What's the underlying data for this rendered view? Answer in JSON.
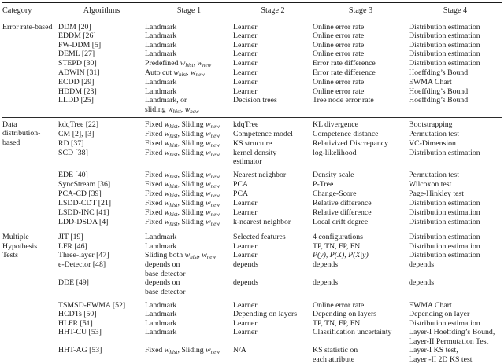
{
  "page": {
    "background": "#ffffff",
    "text_color": "#1d1d1d",
    "rule_color": "#2b2b2b"
  },
  "table": {
    "columns": [
      {
        "label": "Category",
        "align": "left"
      },
      {
        "label": "Algorithms",
        "align": "center"
      },
      {
        "label": "Stage 1",
        "align": "center"
      },
      {
        "label": "Stage 2",
        "align": "center"
      },
      {
        "label": "Stage 3",
        "align": "center"
      },
      {
        "label": "Stage 4",
        "align": "center"
      }
    ],
    "sections": [
      {
        "category": "Error rate-based",
        "rows": [
          {
            "algorithm": "DDM [20]",
            "stage1": "Landmark",
            "stage2": "Learner",
            "stage3": "Online error rate",
            "stage4": "Distribution estimation"
          },
          {
            "algorithm": "EDDM [26]",
            "stage1": "Landmark",
            "stage2": "Learner",
            "stage3": "Online error rate",
            "stage4": "Distribution estimation"
          },
          {
            "algorithm": "FW-DDM [5]",
            "stage1": "Landmark",
            "stage2": "Learner",
            "stage3": "Online error rate",
            "stage4": "Distribution estimation"
          },
          {
            "algorithm": "DEML [27]",
            "stage1": "Landmark",
            "stage2": "Learner",
            "stage3": "Online error rate",
            "stage4": "Distribution estimation"
          },
          {
            "algorithm": "STEPD [30]",
            "stage1": "Predefined $w_hist$, $w_new$",
            "stage2": "Learner",
            "stage3": "Error rate difference",
            "stage4": "Distribution estimation"
          },
          {
            "algorithm": "ADWIN [31]",
            "stage1": "Auto cut $w_hist$, $w_new$",
            "stage2": "Learner",
            "stage3": "Error rate difference",
            "stage4": "Hoeffding’s Bound"
          },
          {
            "algorithm": "ECDD [29]",
            "stage1": "Landmark",
            "stage2": "Learner",
            "stage3": "Online error rate",
            "stage4": "EWMA Chart"
          },
          {
            "algorithm": "HDDM [23]",
            "stage1": "Landmark",
            "stage2": "Learner",
            "stage3": "Online error rate",
            "stage4": "Hoeffding’s Bound"
          },
          {
            "algorithm": "LLDD [25]",
            "stage1": "Landmark, or\nsliding $w_hist$, $w_new$",
            "stage2": "Decision trees",
            "stage3": "Tree node error rate",
            "stage4": "Hoeffding’s Bound"
          }
        ]
      },
      {
        "category": "Data\ndistribution-based",
        "rows": [
          {
            "algorithm": "kdqTree [22]",
            "stage1": "Fixed $w_hist$, Sliding $w_new$",
            "stage2": "kdqTree",
            "stage3": "KL divergence",
            "stage4": "Bootstrapping"
          },
          {
            "algorithm": "CM [2], [3]",
            "stage1": "Fixed $w_hist$, Sliding $w_new$",
            "stage2": "Competence model",
            "stage3": "Competence distance",
            "stage4": "Permutation test"
          },
          {
            "algorithm": "RD [37]",
            "stage1": "Fixed $w_hist$, Sliding $w_new$",
            "stage2": "KS structure",
            "stage3": "Relativized Discrepancy",
            "stage4": "VC-Dimension"
          },
          {
            "algorithm": "SCD [38]",
            "stage1": "Fixed $w_hist$, Sliding $w_new$",
            "stage2": "kernel density\nestimator",
            "stage3": "log-likelihood",
            "stage4": "Distribution estimation"
          },
          {
            "algorithm": "EDE [40]",
            "gap": true,
            "stage1": "Fixed $w_hist$, Sliding $w_new$",
            "stage2": "Nearest neighbor",
            "stage3": "Density scale",
            "stage4": "Permutation test"
          },
          {
            "algorithm": "SyncStream [36]",
            "stage1": "Fixed $w_hist$, Sliding $w_new$",
            "stage2": "PCA",
            "stage3": "P-Tree",
            "stage4": "Wilcoxon test"
          },
          {
            "algorithm": "PCA-CD [39]",
            "stage1": "Fixed $w_hist$, Sliding $w_new$",
            "stage2": "PCA",
            "stage3": "Change-Score",
            "stage4": "Page-Hinkley test"
          },
          {
            "algorithm": "LSDD-CDT [21]",
            "stage1": "Fixed $w_hist$, Sliding $w_new$",
            "stage2": "Learner",
            "stage3": "Relative difference",
            "stage4": "Distribution estimation"
          },
          {
            "algorithm": "LSDD-INC [41]",
            "stage1": "Fixed $w_hist$, Sliding $w_new$",
            "stage2": "Learner",
            "stage3": "Relative difference",
            "stage4": "Distribution estimation"
          },
          {
            "algorithm": "LDD-DSDA [4]",
            "stage1": "Fixed $w_hist$, Sliding $w_new$",
            "stage2": "k-nearest neighbor",
            "stage3": "Local drift degree",
            "stage4": "Distribution estimation"
          }
        ]
      },
      {
        "category": "Multiple\nHypothesis\nTests",
        "rows": [
          {
            "algorithm": "JIT [19]",
            "stage1": "Landmark",
            "stage2": "Selected features",
            "stage3": "4 configurations",
            "stage4": "Distribution estimation"
          },
          {
            "algorithm": "LFR [46]",
            "stage1": "Landmark",
            "stage2": "Learner",
            "stage3": "TP, TN, FP, FN",
            "stage4": "Distribution estimation"
          },
          {
            "algorithm": "Three-layer [47]",
            "stage1": "Sliding both $w_hist$, $w_new$",
            "stage2": "Learner",
            "stage3": "$P(y)$, $P(X)$, $P(X|y)$",
            "stage4": "Distribution estimation"
          },
          {
            "algorithm": "e-Detector [48]",
            "stage1": "depends on\nbase detector",
            "stage2": "depends",
            "stage3": "depends",
            "stage4": "depends"
          },
          {
            "algorithm": "DDE [49]",
            "stage1": "depends on\nbase detector",
            "stage2": "depends",
            "stage3": "depends",
            "stage4": "depends"
          },
          {
            "algorithm": "TSMSD-EWMA [52]",
            "gap": true,
            "stage1": "Landmark",
            "stage2": "Learner",
            "stage3": "Online error rate",
            "stage4": "EWMA Chart"
          },
          {
            "algorithm": "HCDTs [50]",
            "stage1": "Landmark",
            "stage2": "Depending on layers",
            "stage3": "Depending on layers",
            "stage4": "Depending on layer"
          },
          {
            "algorithm": "HLFR [51]",
            "stage1": "Landmark",
            "stage2": "Learner",
            "stage3": "TP, TN, FP, FN",
            "stage4": "Distribution estimation"
          },
          {
            "algorithm": "HHT-CU [53]",
            "stage1": "Landmark",
            "stage2": "Learner",
            "stage3": "Classification uncertainty",
            "stage4": "Layer-I Hoeffding’s Bound,\nLayer-II Permutation Test"
          },
          {
            "algorithm": "HHT-AG [53]",
            "stage1": "Fixed $w_hist$, Sliding $w_new$",
            "stage2": "N/A",
            "stage3": "KS statistic on\neach attribute",
            "stage4": "Layer-I KS test,\nLayer -II 2D KS test"
          }
        ]
      }
    ]
  }
}
